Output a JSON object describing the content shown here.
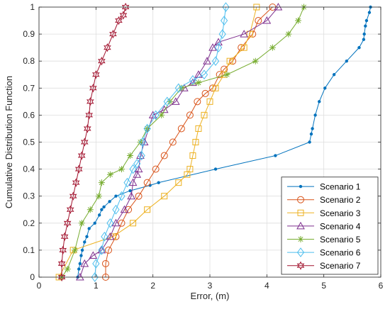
{
  "chart_data": {
    "type": "line",
    "title": "",
    "xlabel": "Error, (m)",
    "ylabel": "Cumulative Distribution Function",
    "xlim": [
      0,
      6
    ],
    "ylim": [
      0,
      1
    ],
    "xticks": [
      "0",
      "1",
      "2",
      "3",
      "4",
      "5",
      "6"
    ],
    "yticks": [
      "0",
      "0.1",
      "0.2",
      "0.3",
      "0.4",
      "0.5",
      "0.6",
      "0.7",
      "0.8",
      "0.9",
      "1"
    ],
    "grid": true,
    "legend_position": "bottom-right",
    "series": [
      {
        "name": "Scenario 1",
        "color": "#0072BD",
        "marker": "dot",
        "x": [
          0.68,
          0.7,
          0.72,
          0.74,
          0.76,
          0.8,
          0.84,
          0.88,
          0.98,
          1.06,
          1.1,
          1.14,
          1.24,
          1.35,
          1.6,
          1.95,
          2.1,
          3.1,
          4.15,
          4.75,
          4.78,
          4.8,
          4.85,
          4.92,
          5.02,
          5.18,
          5.4,
          5.62,
          5.7,
          5.71,
          5.73,
          5.75,
          5.8,
          5.82
        ],
        "y": [
          0.0,
          0.03,
          0.05,
          0.08,
          0.1,
          0.13,
          0.15,
          0.18,
          0.2,
          0.23,
          0.25,
          0.26,
          0.28,
          0.3,
          0.32,
          0.34,
          0.35,
          0.4,
          0.45,
          0.5,
          0.53,
          0.55,
          0.6,
          0.65,
          0.7,
          0.75,
          0.8,
          0.85,
          0.88,
          0.9,
          0.93,
          0.95,
          0.98,
          1.0
        ]
      },
      {
        "name": "Scenario 2",
        "color": "#D95319",
        "marker": "circle",
        "x": [
          1.17,
          1.17,
          1.22,
          1.35,
          1.45,
          1.57,
          1.75,
          1.9,
          2.05,
          2.2,
          2.35,
          2.5,
          2.65,
          2.78,
          2.92,
          3.05,
          3.17,
          3.25,
          3.4,
          3.55,
          3.75,
          3.85,
          4.1
        ],
        "y": [
          0.0,
          0.05,
          0.1,
          0.15,
          0.2,
          0.25,
          0.3,
          0.35,
          0.4,
          0.45,
          0.5,
          0.55,
          0.6,
          0.65,
          0.68,
          0.7,
          0.75,
          0.77,
          0.8,
          0.85,
          0.9,
          0.95,
          1.0
        ]
      },
      {
        "name": "Scenario 3",
        "color": "#EDB120",
        "marker": "square",
        "x": [
          0.35,
          0.6,
          1.3,
          1.65,
          1.9,
          2.2,
          2.45,
          2.6,
          2.65,
          2.7,
          2.75,
          2.8,
          2.9,
          3.0,
          3.1,
          3.25,
          3.35,
          3.6,
          3.7,
          3.82
        ],
        "y": [
          0.0,
          0.1,
          0.15,
          0.2,
          0.25,
          0.3,
          0.35,
          0.38,
          0.4,
          0.45,
          0.5,
          0.55,
          0.6,
          0.65,
          0.7,
          0.75,
          0.8,
          0.85,
          0.9,
          1.0
        ]
      },
      {
        "name": "Scenario 4",
        "color": "#7E2F8E",
        "marker": "triangle",
        "x": [
          0.72,
          0.8,
          0.95,
          1.1,
          1.25,
          1.35,
          1.5,
          1.62,
          1.65,
          1.72,
          1.75,
          1.78,
          1.85,
          2.0,
          2.2,
          2.4,
          2.55,
          2.7,
          2.8,
          2.95,
          3.05,
          3.15,
          3.6,
          4.0,
          4.2
        ],
        "y": [
          0.0,
          0.05,
          0.08,
          0.1,
          0.15,
          0.2,
          0.25,
          0.3,
          0.35,
          0.38,
          0.4,
          0.45,
          0.5,
          0.6,
          0.62,
          0.65,
          0.7,
          0.72,
          0.75,
          0.8,
          0.85,
          0.87,
          0.9,
          0.95,
          1.0
        ]
      },
      {
        "name": "Scenario 5",
        "color": "#77AC30",
        "marker": "star",
        "x": [
          0.4,
          0.5,
          0.63,
          0.75,
          0.9,
          1.05,
          1.1,
          1.25,
          1.45,
          1.6,
          1.78,
          1.9,
          2.15,
          2.3,
          2.5,
          2.8,
          3.3,
          3.8,
          4.1,
          4.38,
          4.55,
          4.65
        ],
        "y": [
          0.0,
          0.03,
          0.1,
          0.2,
          0.25,
          0.3,
          0.35,
          0.38,
          0.4,
          0.45,
          0.5,
          0.55,
          0.6,
          0.65,
          0.7,
          0.72,
          0.75,
          0.8,
          0.85,
          0.9,
          0.95,
          1.0
        ]
      },
      {
        "name": "Scenario 6",
        "color": "#4DBEEE",
        "marker": "diamond",
        "x": [
          0.98,
          1.0,
          1.1,
          1.15,
          1.25,
          1.35,
          1.45,
          1.55,
          1.65,
          1.72,
          1.8,
          1.82,
          1.9,
          2.05,
          2.25,
          2.45,
          2.7,
          2.9,
          3.1,
          3.15,
          3.22,
          3.25,
          3.28
        ],
        "y": [
          0.0,
          0.05,
          0.1,
          0.15,
          0.2,
          0.25,
          0.3,
          0.35,
          0.4,
          0.42,
          0.45,
          0.5,
          0.55,
          0.6,
          0.65,
          0.7,
          0.73,
          0.75,
          0.8,
          0.85,
          0.9,
          0.95,
          1.0
        ]
      },
      {
        "name": "Scenario 7",
        "color": "#A2142F",
        "marker": "hexagram",
        "x": [
          0.4,
          0.4,
          0.42,
          0.45,
          0.5,
          0.55,
          0.6,
          0.65,
          0.7,
          0.75,
          0.8,
          0.85,
          0.88,
          0.9,
          0.95,
          1.0,
          1.1,
          1.2,
          1.3,
          1.4,
          1.48,
          1.52
        ],
        "y": [
          0.0,
          0.05,
          0.1,
          0.15,
          0.2,
          0.25,
          0.3,
          0.35,
          0.4,
          0.45,
          0.5,
          0.55,
          0.6,
          0.65,
          0.7,
          0.75,
          0.8,
          0.85,
          0.9,
          0.95,
          0.97,
          1.0
        ]
      }
    ]
  }
}
